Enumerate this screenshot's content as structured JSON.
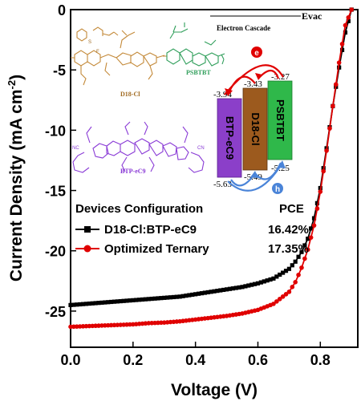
{
  "chart_data": {
    "type": "line",
    "xlabel": "Voltage (V)",
    "ylabel": "Current Density (mA cm⁻²)",
    "ylabel_main": "Current Density (mA cm",
    "ylabel_sup": "-2",
    "ylabel_close": ")",
    "xlim": [
      0.0,
      0.92
    ],
    "ylim": [
      -28,
      0
    ],
    "xticks": [
      "0.0",
      "0.2",
      "0.4",
      "0.6",
      "0.8"
    ],
    "xtick_values": [
      0.0,
      0.2,
      0.4,
      0.6,
      0.8
    ],
    "yticks": [
      "0",
      "-5",
      "-10",
      "-15",
      "-20",
      "-25"
    ],
    "ytick_values": [
      0,
      -5,
      -10,
      -15,
      -20,
      -25
    ],
    "legend": {
      "title": "Devices Configuration",
      "pce_header": "PCE",
      "entries": [
        {
          "name": "D18-Cl:BTP-eC9",
          "pce": "16.42%"
        },
        {
          "name": "Optimized Ternary",
          "pce": "17.35%"
        }
      ]
    },
    "series": [
      {
        "name": "D18-Cl:BTP-eC9",
        "color": "#000000",
        "marker": "square",
        "x": [
          0.0,
          0.05,
          0.1,
          0.15,
          0.2,
          0.25,
          0.3,
          0.35,
          0.4,
          0.45,
          0.5,
          0.55,
          0.6,
          0.65,
          0.7,
          0.72,
          0.74,
          0.76,
          0.78,
          0.8,
          0.82,
          0.84,
          0.86,
          0.88,
          0.9
        ],
        "y": [
          -24.5,
          -24.4,
          -24.3,
          -24.2,
          -24.1,
          -24.0,
          -23.9,
          -23.8,
          -23.6,
          -23.4,
          -23.2,
          -23.0,
          -22.7,
          -22.3,
          -21.5,
          -20.9,
          -20.1,
          -19.0,
          -17.3,
          -14.8,
          -11.5,
          -8.0,
          -4.8,
          -1.9,
          0.0
        ]
      },
      {
        "name": "Optimized Ternary",
        "color": "#e00000",
        "marker": "circle",
        "x": [
          0.0,
          0.05,
          0.1,
          0.15,
          0.2,
          0.25,
          0.3,
          0.35,
          0.4,
          0.45,
          0.5,
          0.55,
          0.6,
          0.65,
          0.7,
          0.72,
          0.74,
          0.76,
          0.78,
          0.8,
          0.82,
          0.84,
          0.86,
          0.88,
          0.9
        ],
        "y": [
          -26.3,
          -26.25,
          -26.2,
          -26.15,
          -26.1,
          -26.0,
          -25.95,
          -25.85,
          -25.7,
          -25.55,
          -25.4,
          -25.2,
          -24.9,
          -24.4,
          -23.4,
          -22.6,
          -21.4,
          -19.9,
          -17.9,
          -15.1,
          -11.7,
          -8.0,
          -4.4,
          -1.3,
          0.0
        ]
      }
    ],
    "inset": {
      "evac_label": "Evac",
      "cascade_label": "Electron Cascade",
      "electron_symbol": "e",
      "hole_symbol": "h",
      "molecule_labels": {
        "d18": "D18-Cl",
        "psbtbt": "PSBTBT",
        "btp": "BTP-eC9"
      },
      "bars": [
        {
          "name": "BTP-eC9",
          "lumo": "-3.94",
          "homo": "-5.63",
          "color": "#8b3fc9"
        },
        {
          "name": "D18-Cl",
          "lumo": "-3.43",
          "homo": "-5.49",
          "color": "#9c5a1e"
        },
        {
          "name": "PSBTBT",
          "lumo": "-3.27",
          "homo": "-5.25",
          "color": "#2fb84a"
        }
      ]
    }
  }
}
